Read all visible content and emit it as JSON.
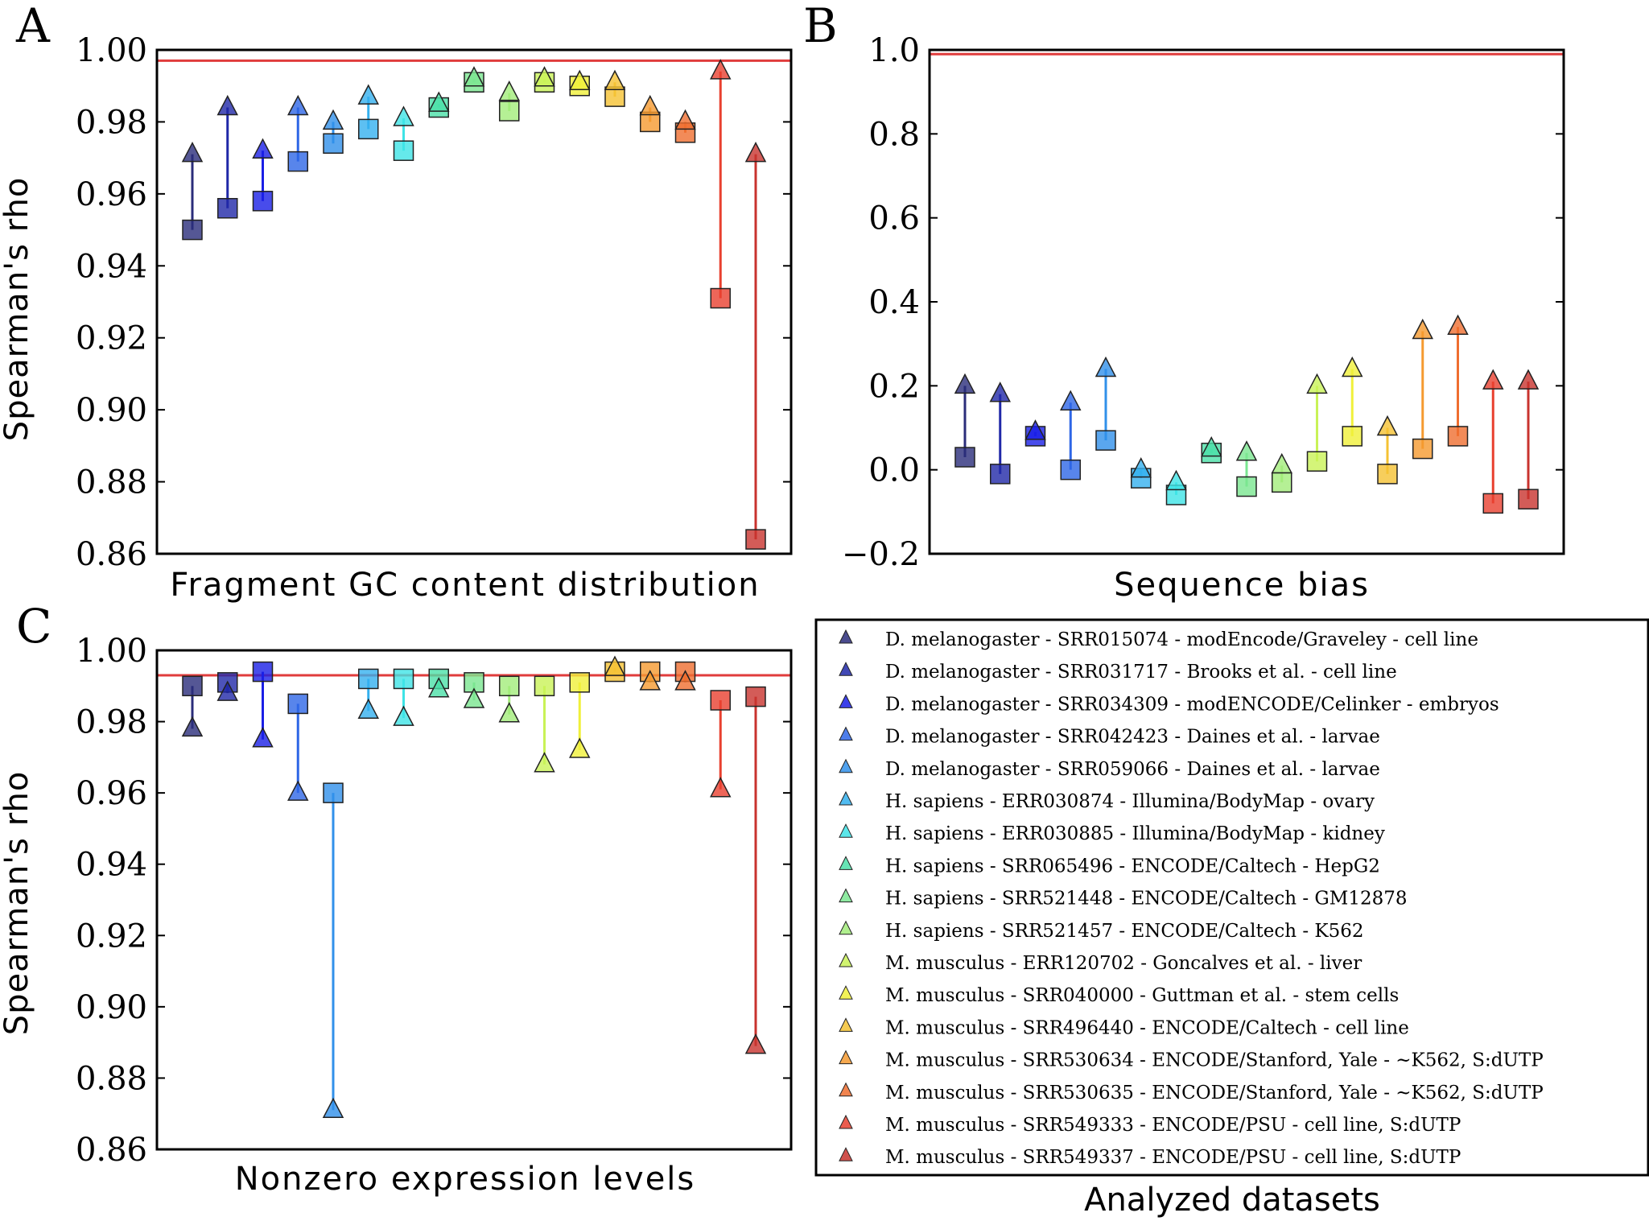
{
  "panels": [
    {
      "letter": "A",
      "chart_data": {
        "type": "scatter",
        "xlabel": "Fragment GC content distribution",
        "ylabel": "Spearman's rho",
        "ylim": [
          0.86,
          1.0
        ],
        "yticks": [
          "0.86",
          "0.88",
          "0.90",
          "0.92",
          "0.94",
          "0.96",
          "0.98",
          "1.00"
        ],
        "reference_line": 0.997,
        "series": [
          {
            "name": "Squares",
            "values": [
              0.95,
              0.956,
              0.958,
              0.969,
              0.974,
              0.978,
              0.972,
              0.984,
              0.991,
              0.983,
              0.991,
              0.99,
              0.987,
              0.98,
              0.977,
              0.931,
              0.864
            ]
          },
          {
            "name": "Triangles",
            "values": [
              0.971,
              0.984,
              0.972,
              0.984,
              0.98,
              0.987,
              0.981,
              0.985,
              0.992,
              0.988,
              0.992,
              0.991,
              0.991,
              0.984,
              0.98,
              0.994,
              0.971
            ]
          }
        ]
      }
    },
    {
      "letter": "B",
      "chart_data": {
        "type": "scatter",
        "xlabel": "Sequence bias",
        "ylabel": "",
        "ylim": [
          -0.2,
          1.0
        ],
        "yticks": [
          "−0.2",
          "0.0",
          "0.2",
          "0.4",
          "0.6",
          "0.8",
          "1.0"
        ],
        "reference_line": 0.99,
        "series": [
          {
            "name": "Squares",
            "values": [
              0.03,
              -0.01,
              0.08,
              0.0,
              0.07,
              -0.02,
              -0.06,
              0.04,
              -0.04,
              -0.03,
              0.02,
              0.08,
              -0.01,
              0.05,
              0.08,
              -0.08,
              -0.07
            ]
          },
          {
            "name": "Triangles",
            "values": [
              0.2,
              0.18,
              0.09,
              0.16,
              0.24,
              0.0,
              -0.03,
              0.05,
              0.04,
              0.01,
              0.2,
              0.24,
              0.1,
              0.33,
              0.34,
              0.21,
              0.21
            ]
          }
        ]
      }
    },
    {
      "letter": "C",
      "chart_data": {
        "type": "scatter",
        "xlabel": "Nonzero expression levels",
        "ylabel": "Spearman's rho",
        "ylim": [
          0.86,
          1.0
        ],
        "yticks": [
          "0.86",
          "0.88",
          "0.90",
          "0.92",
          "0.94",
          "0.96",
          "0.98",
          "1.00"
        ],
        "reference_line": 0.993,
        "series": [
          {
            "name": "Squares",
            "values": [
              0.99,
              0.991,
              0.994,
              0.985,
              0.96,
              0.992,
              0.992,
              0.992,
              0.991,
              0.99,
              0.99,
              0.991,
              0.994,
              0.994,
              0.994,
              0.986,
              0.987
            ]
          },
          {
            "name": "Triangles",
            "values": [
              0.978,
              0.988,
              0.975,
              0.96,
              0.871,
              0.983,
              0.981,
              0.989,
              0.986,
              0.982,
              0.968,
              0.972,
              0.995,
              0.991,
              0.991,
              0.961,
              0.889
            ]
          }
        ]
      }
    }
  ],
  "colors": [
    "#2b2d7a",
    "#2028a8",
    "#1a1fe6",
    "#2e66e6",
    "#3190ea",
    "#34b0ef",
    "#3ee3e6",
    "#4be0a8",
    "#7ae690",
    "#a2ec7a",
    "#c9f257",
    "#f0f03a",
    "#f5c233",
    "#f59a30",
    "#ef6e30",
    "#e8402f",
    "#c8332e"
  ],
  "legend": {
    "title": "Analyzed datasets",
    "items": [
      "D. melanogaster - SRR015074 - modEncode/Graveley - cell line",
      "D. melanogaster - SRR031717 - Brooks et al. - cell line",
      "D. melanogaster - SRR034309 - modENCODE/Celinker - embryos",
      "D. melanogaster - SRR042423 - Daines et al. - larvae",
      "D. melanogaster - SRR059066 - Daines et al. - larvae",
      "H. sapiens - ERR030874 - Illumina/BodyMap - ovary",
      "H. sapiens - ERR030885 - Illumina/BodyMap - kidney",
      "H. sapiens - SRR065496 - ENCODE/Caltech  - HepG2",
      "H. sapiens - SRR521448 - ENCODE/Caltech  - GM12878",
      "H. sapiens - SRR521457 - ENCODE/Caltech  - K562",
      "M. musculus - ERR120702 - Goncalves et al. - liver",
      "M. musculus - SRR040000 - Guttman et al. - stem cells",
      "M. musculus - SRR496440 - ENCODE/Caltech - cell line",
      "M. musculus - SRR530634 - ENCODE/Stanford, Yale - ~K562, S:dUTP",
      "M. musculus - SRR530635 - ENCODE/Stanford, Yale - ~K562, S:dUTP",
      "M. musculus - SRR549333 - ENCODE/PSU - cell line, S:dUTP",
      "M. musculus - SRR549337 - ENCODE/PSU - cell line, S:dUTP"
    ]
  }
}
